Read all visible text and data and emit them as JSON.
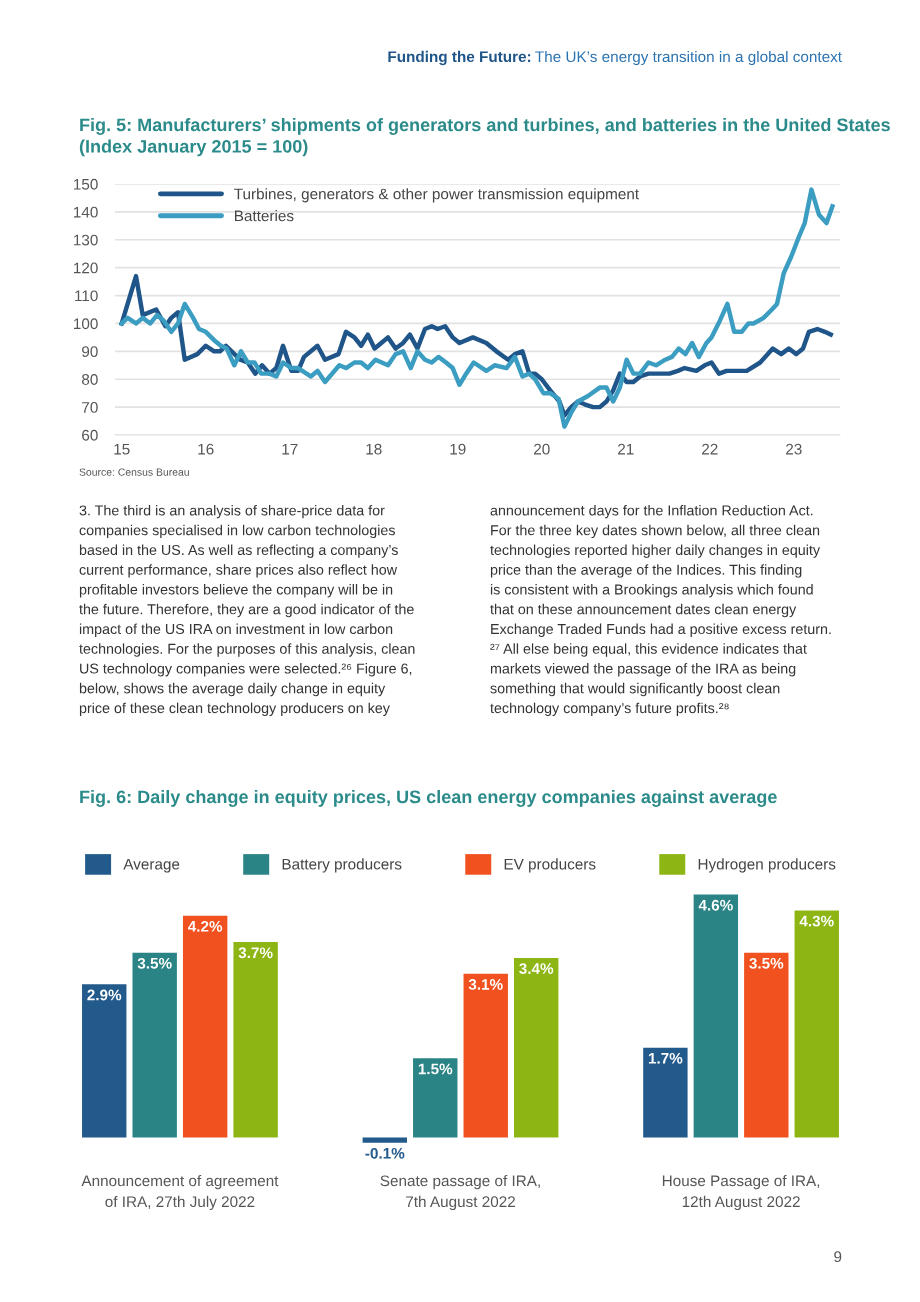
{
  "chart_data": [
    {
      "type": "line",
      "title": "Fig. 5: Manufacturers’ shipments of generators and turbines, and batteries in the United States (Index January 2015 = 100)",
      "xlim": [
        14.92,
        23.55
      ],
      "xticks": [
        15,
        16,
        17,
        18,
        19,
        20,
        21,
        22,
        23
      ],
      "ylim": [
        60,
        150
      ],
      "yticks": [
        60,
        70,
        80,
        90,
        100,
        110,
        120,
        130,
        140,
        150
      ],
      "grid": "y",
      "legend": "top left",
      "annotations": [
        "Source: Census Bureau"
      ],
      "series": [
        {
          "name": "Turbines, generators & other power transmission equipment",
          "color": "#1f5588",
          "x": [
            15.0,
            15.17,
            15.25,
            15.41,
            15.52,
            15.59,
            15.67,
            15.75,
            15.9,
            16.0,
            16.1,
            16.17,
            16.24,
            16.41,
            16.5,
            16.59,
            16.67,
            16.76,
            16.84,
            16.92,
            17.02,
            17.1,
            17.17,
            17.33,
            17.42,
            17.58,
            17.67,
            17.77,
            17.85,
            17.93,
            18.01,
            18.09,
            18.17,
            18.26,
            18.35,
            18.43,
            18.52,
            18.61,
            18.69,
            18.76,
            18.85,
            18.94,
            19.02,
            19.18,
            19.34,
            19.46,
            19.6,
            19.68,
            19.77,
            19.85,
            19.92,
            20.0,
            20.1,
            20.21,
            20.27,
            20.35,
            20.43,
            20.51,
            20.61,
            20.69,
            20.77,
            20.85,
            20.93,
            21.01,
            21.09,
            21.17,
            21.27,
            21.37,
            21.52,
            21.62,
            21.7,
            21.84,
            21.94,
            22.02,
            22.11,
            22.2,
            22.28,
            22.36,
            22.44,
            22.6,
            22.75,
            22.85,
            22.94,
            23.03,
            23.11,
            23.18,
            23.28,
            23.37,
            23.44
          ],
          "values": [
            100,
            117,
            103,
            105,
            99,
            102,
            104,
            87,
            89,
            92,
            90,
            90,
            92,
            87,
            86,
            82,
            85,
            82,
            84,
            92,
            83,
            83,
            88,
            92,
            87,
            89,
            97,
            95,
            92,
            96,
            91,
            93,
            95,
            91,
            93,
            96,
            91,
            98,
            99,
            98,
            99,
            95,
            93,
            95,
            93,
            90,
            87,
            89,
            90,
            82,
            82,
            80,
            76,
            72,
            67,
            70,
            72,
            71,
            70,
            70,
            72,
            76,
            82,
            79,
            79,
            81,
            82,
            82,
            82,
            83,
            84,
            83,
            85,
            86,
            82,
            83,
            83,
            83,
            83,
            86,
            91,
            89,
            91,
            89,
            91,
            97,
            98,
            97,
            96
          ]
        },
        {
          "name": "Batteries",
          "color": "#3b9dc1",
          "x": [
            15.0,
            15.07,
            15.17,
            15.25,
            15.34,
            15.42,
            15.5,
            15.59,
            15.67,
            15.75,
            15.85,
            15.92,
            16.0,
            16.1,
            16.18,
            16.25,
            16.34,
            16.42,
            16.5,
            16.58,
            16.66,
            16.76,
            16.84,
            16.92,
            17.02,
            17.1,
            17.25,
            17.33,
            17.42,
            17.59,
            17.67,
            17.77,
            17.85,
            17.93,
            18.02,
            18.17,
            18.26,
            18.35,
            18.44,
            18.52,
            18.61,
            18.69,
            18.77,
            18.86,
            18.94,
            19.02,
            19.1,
            19.19,
            19.34,
            19.44,
            19.58,
            19.68,
            19.77,
            19.85,
            19.92,
            20.02,
            20.1,
            20.2,
            20.27,
            20.35,
            20.43,
            20.55,
            20.69,
            20.77,
            20.85,
            20.93,
            21.01,
            21.09,
            21.17,
            21.27,
            21.36,
            21.47,
            21.55,
            21.63,
            21.71,
            21.79,
            21.87,
            21.96,
            22.02,
            22.12,
            22.21,
            22.29,
            22.38,
            22.46,
            22.52,
            22.64,
            22.74,
            22.8,
            22.88,
            22.97,
            23.06,
            23.13,
            23.21,
            23.3,
            23.39,
            23.46
          ],
          "values": [
            100,
            102,
            100,
            102,
            100,
            103,
            101,
            97,
            100,
            107,
            102,
            98,
            97,
            94,
            92,
            91,
            85,
            90,
            86,
            86,
            82,
            82,
            81,
            86,
            84,
            84,
            81,
            83,
            79,
            85,
            84,
            86,
            86,
            84,
            87,
            85,
            89,
            90,
            84,
            90,
            87,
            86,
            88,
            86,
            84,
            78,
            82,
            86,
            83,
            85,
            84,
            88,
            81,
            82,
            80,
            75,
            75,
            73,
            63,
            68,
            72,
            74,
            77,
            77,
            72,
            77,
            87,
            82,
            82,
            86,
            85,
            87,
            88,
            91,
            89,
            93,
            88,
            93,
            95,
            101,
            107,
            97,
            97,
            100,
            100,
            102,
            105,
            107,
            118,
            124,
            131,
            136,
            148,
            139,
            136,
            142
          ]
        }
      ]
    },
    {
      "type": "other",
      "annotations": [
        "Funding the Future:",
        "The UK’s energy transition in a global context",
        "3. The third is an analysis of share-price data for\ncompanies specialised in low carbon technologies\nbased in the US. As well as reflecting a company’s\ncurrent performance, share prices also reflect how\nprofitable investors believe the company will be in\nthe future. Therefore, they are a good indicator of the\nimpact of the US IRA on investment in low carbon\ntechnologies. For the purposes of this analysis, clean\nUS technology companies were selected.²⁶ Figure 6,\nbelow, shows the average daily change in equity\nprice of these clean technology producers on key",
        "announcement days for the Inflation Reduction Act.\nFor the three key dates shown below, all three clean\ntechnologies reported higher daily changes in equity\nprice than the average of the Indices. This finding\nis consistent with a Brookings analysis which found\nthat on these announcement dates clean energy\nExchange Traded Funds had a positive excess return.\n²⁷ All else being equal, this evidence indicates that\nmarkets viewed the passage of the IRA as being\nsomething that would significantly boost clean\ntechnology company’s future profits.²⁸",
        "9"
      ]
    },
    {
      "type": "bar",
      "title": "Fig. 6: Daily change in equity prices, US clean energy companies against average",
      "categories": [
        "Announcement of agreement\nof IRA, 27th July 2022",
        "Senate passage of IRA,\n7th August 2022",
        "House Passage of IRA,\n12th August 2022"
      ],
      "legend": "top",
      "series": [
        {
          "name": "Average",
          "color": "#235a8c",
          "values": [
            2.9,
            -0.1,
            1.7
          ],
          "value_labels": [
            "2.9%",
            "-0.1%",
            "1.7%"
          ]
        },
        {
          "name": "Battery producers",
          "color": "#2a8385",
          "values": [
            3.5,
            1.5,
            4.6
          ],
          "value_labels": [
            "3.5%",
            "1.5%",
            "4.6%"
          ]
        },
        {
          "name": "EV producers",
          "color": "#f0511e",
          "values": [
            4.2,
            3.1,
            3.5
          ],
          "value_labels": [
            "4.2%",
            "3.1%",
            "3.5%"
          ]
        },
        {
          "name": "Hydrogen producers",
          "color": "#8db514",
          "values": [
            3.7,
            3.4,
            4.3
          ],
          "value_labels": [
            "3.7%",
            "3.4%",
            "4.3%"
          ]
        }
      ]
    }
  ]
}
